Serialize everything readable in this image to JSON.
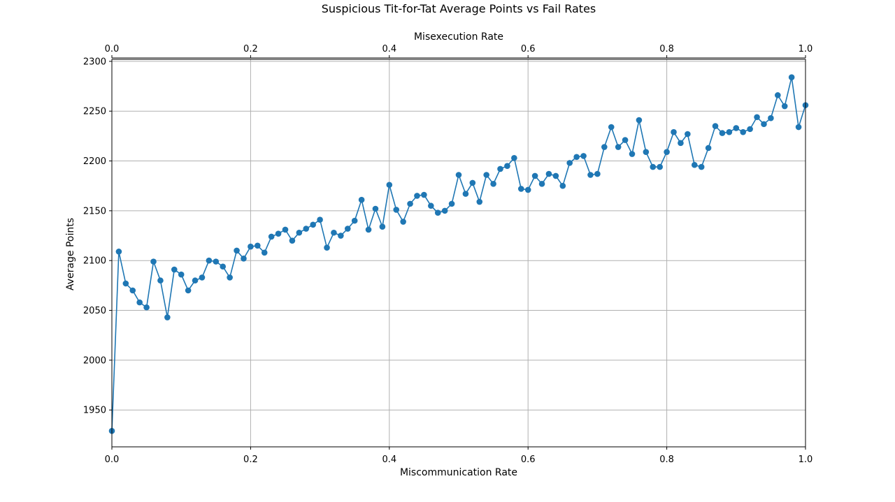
{
  "chart_data": {
    "type": "line",
    "title": "Suspicious Tit-for-Tat Average Points vs Fail Rates",
    "xlabel": "Miscommunication Rate",
    "x2label": "Misexecution Rate",
    "ylabel": "Average Points",
    "xlim": [
      0,
      1
    ],
    "ylim": [
      1913,
      2302
    ],
    "x_ticks": [
      "0.0",
      "0.2",
      "0.4",
      "0.6",
      "0.8",
      "1.0"
    ],
    "x_tick_values": [
      0.0,
      0.2,
      0.4,
      0.6,
      0.8,
      1.0
    ],
    "y_ticks": [
      "1950",
      "2000",
      "2050",
      "2100",
      "2150",
      "2200",
      "2250",
      "2300"
    ],
    "y_tick_values": [
      1950,
      2000,
      2050,
      2100,
      2150,
      2200,
      2250,
      2300
    ],
    "grid": true,
    "series_color": "#1f77b4",
    "x": [
      0.0,
      0.01,
      0.02,
      0.03,
      0.04,
      0.05,
      0.06,
      0.07,
      0.08,
      0.09,
      0.1,
      0.11,
      0.12,
      0.13,
      0.14,
      0.15,
      0.16,
      0.17,
      0.18,
      0.19,
      0.2,
      0.21,
      0.22,
      0.23,
      0.24,
      0.25,
      0.26,
      0.27,
      0.28,
      0.29,
      0.3,
      0.31,
      0.32,
      0.33,
      0.34,
      0.35,
      0.36,
      0.37,
      0.38,
      0.39,
      0.4,
      0.41,
      0.42,
      0.43,
      0.44,
      0.45,
      0.46,
      0.47,
      0.48,
      0.49,
      0.5,
      0.51,
      0.52,
      0.53,
      0.54,
      0.55,
      0.56,
      0.57,
      0.58,
      0.59,
      0.6,
      0.61,
      0.62,
      0.63,
      0.64,
      0.65,
      0.66,
      0.67,
      0.68,
      0.69,
      0.7,
      0.71,
      0.72,
      0.73,
      0.74,
      0.75,
      0.76,
      0.77,
      0.78,
      0.79,
      0.8,
      0.81,
      0.82,
      0.83,
      0.84,
      0.85,
      0.86,
      0.87,
      0.88,
      0.89,
      0.9,
      0.91,
      0.92,
      0.93,
      0.94,
      0.95,
      0.96,
      0.97,
      0.98,
      0.99,
      1.0
    ],
    "values": [
      1929,
      2109,
      2077,
      2070,
      2058,
      2053,
      2099,
      2080,
      2043,
      2091,
      2086,
      2070,
      2080,
      2083,
      2100,
      2099,
      2094,
      2083,
      2110,
      2102,
      2114,
      2115,
      2108,
      2124,
      2127,
      2131,
      2120,
      2128,
      2132,
      2136,
      2141,
      2113,
      2128,
      2125,
      2132,
      2140,
      2161,
      2131,
      2152,
      2134,
      2176,
      2151,
      2139,
      2157,
      2165,
      2166,
      2155,
      2148,
      2150,
      2157,
      2186,
      2167,
      2178,
      2159,
      2186,
      2177,
      2192,
      2195,
      2203,
      2172,
      2171,
      2185,
      2177,
      2187,
      2185,
      2175,
      2198,
      2204,
      2205,
      2186,
      2187,
      2214,
      2234,
      2214,
      2221,
      2207,
      2241,
      2209,
      2194,
      2194,
      2209,
      2229,
      2218,
      2227,
      2196,
      2194,
      2213,
      2235,
      2228,
      2229,
      2233,
      2229,
      2232,
      2244,
      2237,
      2243,
      2266,
      2255,
      2284,
      2234,
      2256
    ]
  }
}
